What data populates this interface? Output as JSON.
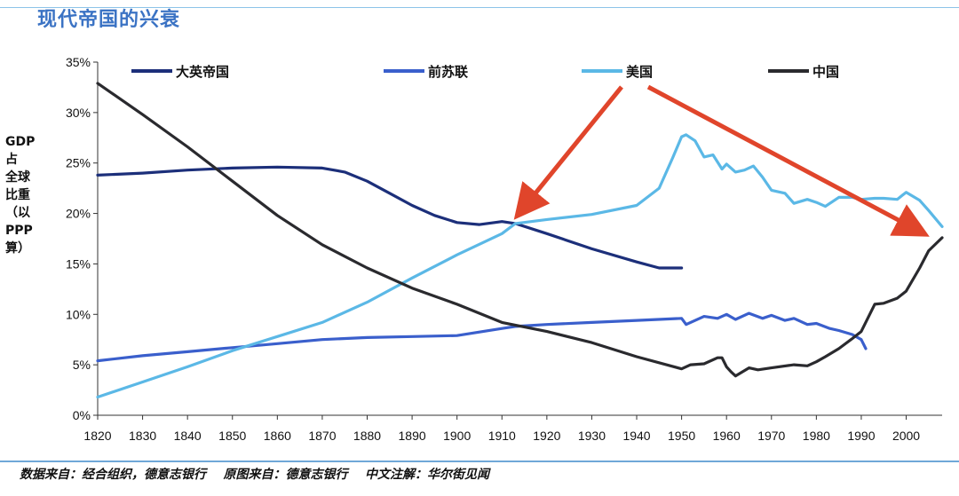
{
  "title": "现代帝国的兴衰",
  "ylabel": "GDP占\n全球\n比重\n（以\nPPP\n算）",
  "source": "数据来自：经合组织，德意志银行    原图来自：德意志银行    中文注解：华尔街见闻",
  "chart_data": {
    "type": "line",
    "title": "现代帝国的兴衰",
    "ylabel": "GDP占全球比重（以PPP算）",
    "xlim": [
      1820,
      2008
    ],
    "ylim": [
      0,
      35
    ],
    "x_ticks": [
      1820,
      1830,
      1840,
      1850,
      1860,
      1870,
      1880,
      1890,
      1900,
      1910,
      1920,
      1930,
      1940,
      1950,
      1960,
      1970,
      1980,
      1990,
      2000
    ],
    "y_ticks": [
      0,
      5,
      10,
      15,
      20,
      25,
      30,
      35
    ],
    "y_tick_labels": [
      "0%",
      "5%",
      "10%",
      "15%",
      "20%",
      "25%",
      "30%",
      "35%"
    ],
    "grid": false,
    "legend": "top",
    "series": [
      {
        "name": "大英帝国",
        "color": "#1c2f7a",
        "x": [
          1820,
          1830,
          1840,
          1850,
          1860,
          1870,
          1875,
          1880,
          1885,
          1890,
          1895,
          1900,
          1905,
          1910,
          1913,
          1920,
          1930,
          1940,
          1945,
          1950
        ],
        "y": [
          23.8,
          24.0,
          24.3,
          24.5,
          24.6,
          24.5,
          24.1,
          23.2,
          22.0,
          20.8,
          19.8,
          19.1,
          18.9,
          19.2,
          19.0,
          18.0,
          16.5,
          15.2,
          14.6,
          14.6
        ]
      },
      {
        "name": "前苏联",
        "color": "#3a5fcc",
        "x": [
          1820,
          1830,
          1840,
          1850,
          1860,
          1870,
          1880,
          1890,
          1900,
          1910,
          1913,
          1920,
          1930,
          1940,
          1950,
          1951,
          1955,
          1958,
          1960,
          1962,
          1965,
          1968,
          1970,
          1973,
          1975,
          1978,
          1980,
          1983,
          1985,
          1988,
          1990,
          1991
        ],
        "y": [
          5.4,
          5.9,
          6.3,
          6.7,
          7.1,
          7.5,
          7.7,
          7.8,
          7.9,
          8.6,
          8.8,
          9.0,
          9.2,
          9.4,
          9.6,
          9.0,
          9.8,
          9.6,
          10.0,
          9.5,
          10.1,
          9.6,
          9.9,
          9.4,
          9.6,
          9.0,
          9.1,
          8.6,
          8.4,
          8.0,
          7.5,
          6.6
        ]
      },
      {
        "name": "美国",
        "color": "#5bb8e6",
        "x": [
          1820,
          1830,
          1840,
          1850,
          1860,
          1870,
          1880,
          1890,
          1900,
          1910,
          1913,
          1920,
          1930,
          1940,
          1945,
          1948,
          1950,
          1951,
          1953,
          1955,
          1957,
          1959,
          1960,
          1962,
          1964,
          1966,
          1968,
          1970,
          1973,
          1975,
          1978,
          1980,
          1982,
          1985,
          1988,
          1990,
          1993,
          1995,
          1998,
          2000,
          2003,
          2005,
          2008
        ],
        "y": [
          1.8,
          3.3,
          4.8,
          6.4,
          7.8,
          9.2,
          11.2,
          13.6,
          15.9,
          18.0,
          19.0,
          19.4,
          19.9,
          20.8,
          22.5,
          25.5,
          27.6,
          27.8,
          27.2,
          25.6,
          25.8,
          24.4,
          24.9,
          24.1,
          24.3,
          24.7,
          23.6,
          22.3,
          22.0,
          21.0,
          21.4,
          21.1,
          20.7,
          21.6,
          21.6,
          21.4,
          21.5,
          21.5,
          21.4,
          22.1,
          21.3,
          20.3,
          18.7
        ]
      },
      {
        "name": "中国",
        "color": "#2a2a2e",
        "x": [
          1820,
          1830,
          1840,
          1850,
          1860,
          1870,
          1880,
          1890,
          1900,
          1910,
          1920,
          1930,
          1940,
          1950,
          1952,
          1955,
          1958,
          1959,
          1960,
          1961,
          1962,
          1965,
          1967,
          1970,
          1975,
          1978,
          1980,
          1982,
          1985,
          1988,
          1990,
          1993,
          1995,
          1998,
          2000,
          2003,
          2005,
          2008
        ],
        "y": [
          32.9,
          29.8,
          26.6,
          23.2,
          19.8,
          16.9,
          14.6,
          12.6,
          11.0,
          9.2,
          8.3,
          7.2,
          5.8,
          4.6,
          5.0,
          5.1,
          5.7,
          5.7,
          4.8,
          4.3,
          3.9,
          4.7,
          4.5,
          4.7,
          5.0,
          4.9,
          5.3,
          5.8,
          6.6,
          7.6,
          8.3,
          11.0,
          11.1,
          11.6,
          12.3,
          14.6,
          16.3,
          17.6
        ]
      }
    ]
  }
}
